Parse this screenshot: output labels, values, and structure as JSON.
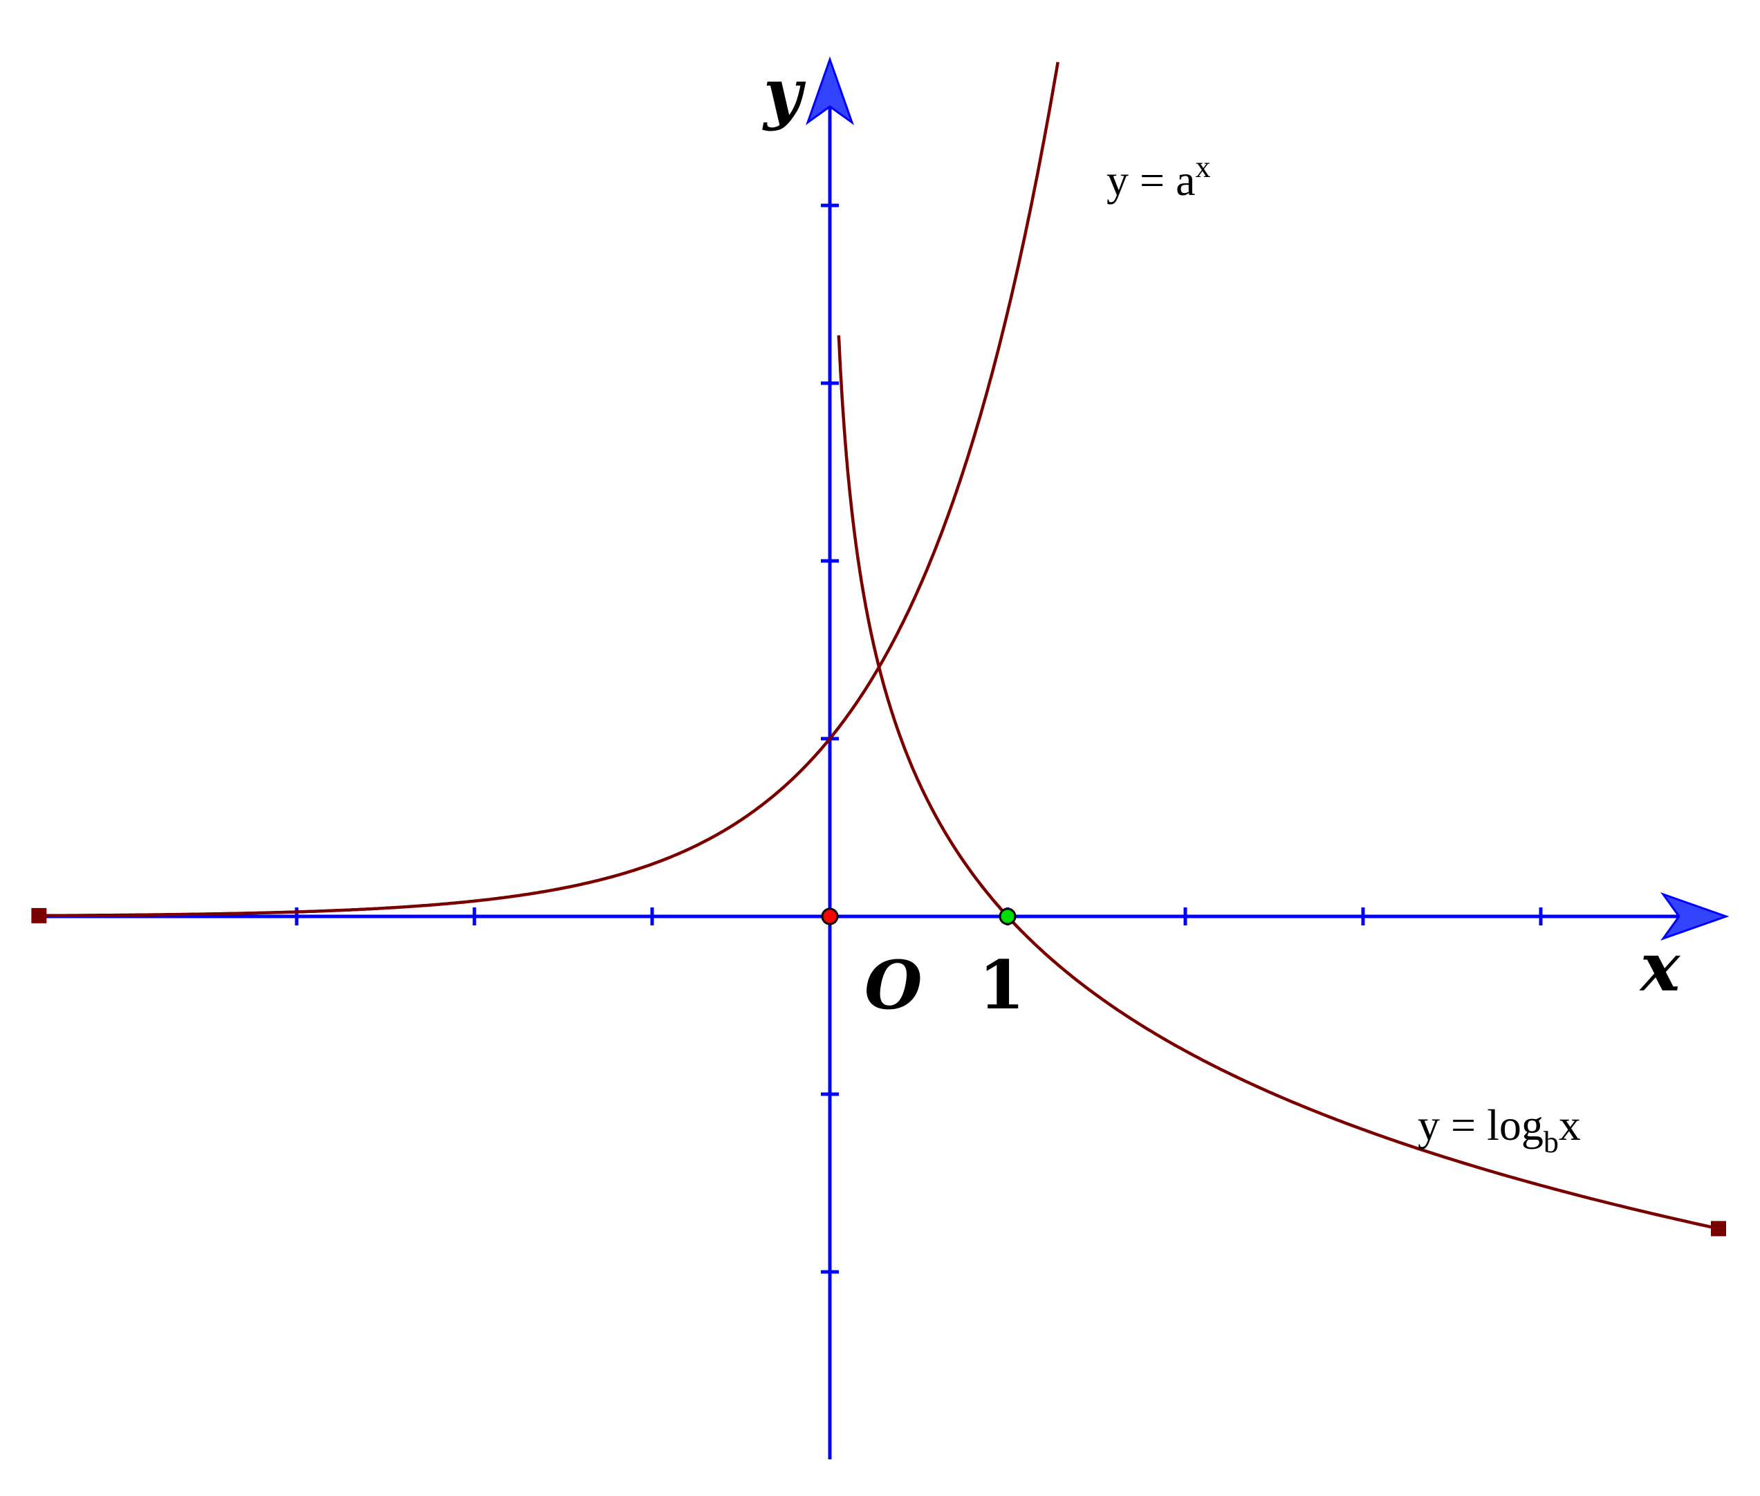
{
  "chart_data": {
    "type": "line",
    "title": "",
    "x_axis_label": "x",
    "y_axis_label": "y",
    "xlim": [
      -4.45,
      5
    ],
    "ylim": [
      -3.1,
      4.75
    ],
    "grid": false,
    "tick_labels": {
      "origin": "O",
      "x_one": "1"
    },
    "series": [
      {
        "label": "y = a^x",
        "label_parts": {
          "base": "y = a",
          "sup": "x"
        },
        "function": "a^x",
        "parameters": {
          "a": 3.4
        },
        "domain": [
          -4.45,
          1.45
        ],
        "color": "#7a0000"
      },
      {
        "label": "y = log_b x",
        "label_parts": {
          "base": "y = log",
          "sub": "b",
          "tail": "x"
        },
        "function": "log_b(x)",
        "parameters": {
          "b": 0.4
        },
        "domain": [
          0.05,
          5
        ],
        "color": "#7a0000"
      }
    ],
    "marked_points": [
      {
        "name": "origin",
        "x": 0,
        "y": 0,
        "color": "#ff0000"
      },
      {
        "name": "x-intercept",
        "x": 1,
        "y": 0,
        "color": "#00dd00"
      }
    ],
    "axis_color": "#0000ff"
  }
}
